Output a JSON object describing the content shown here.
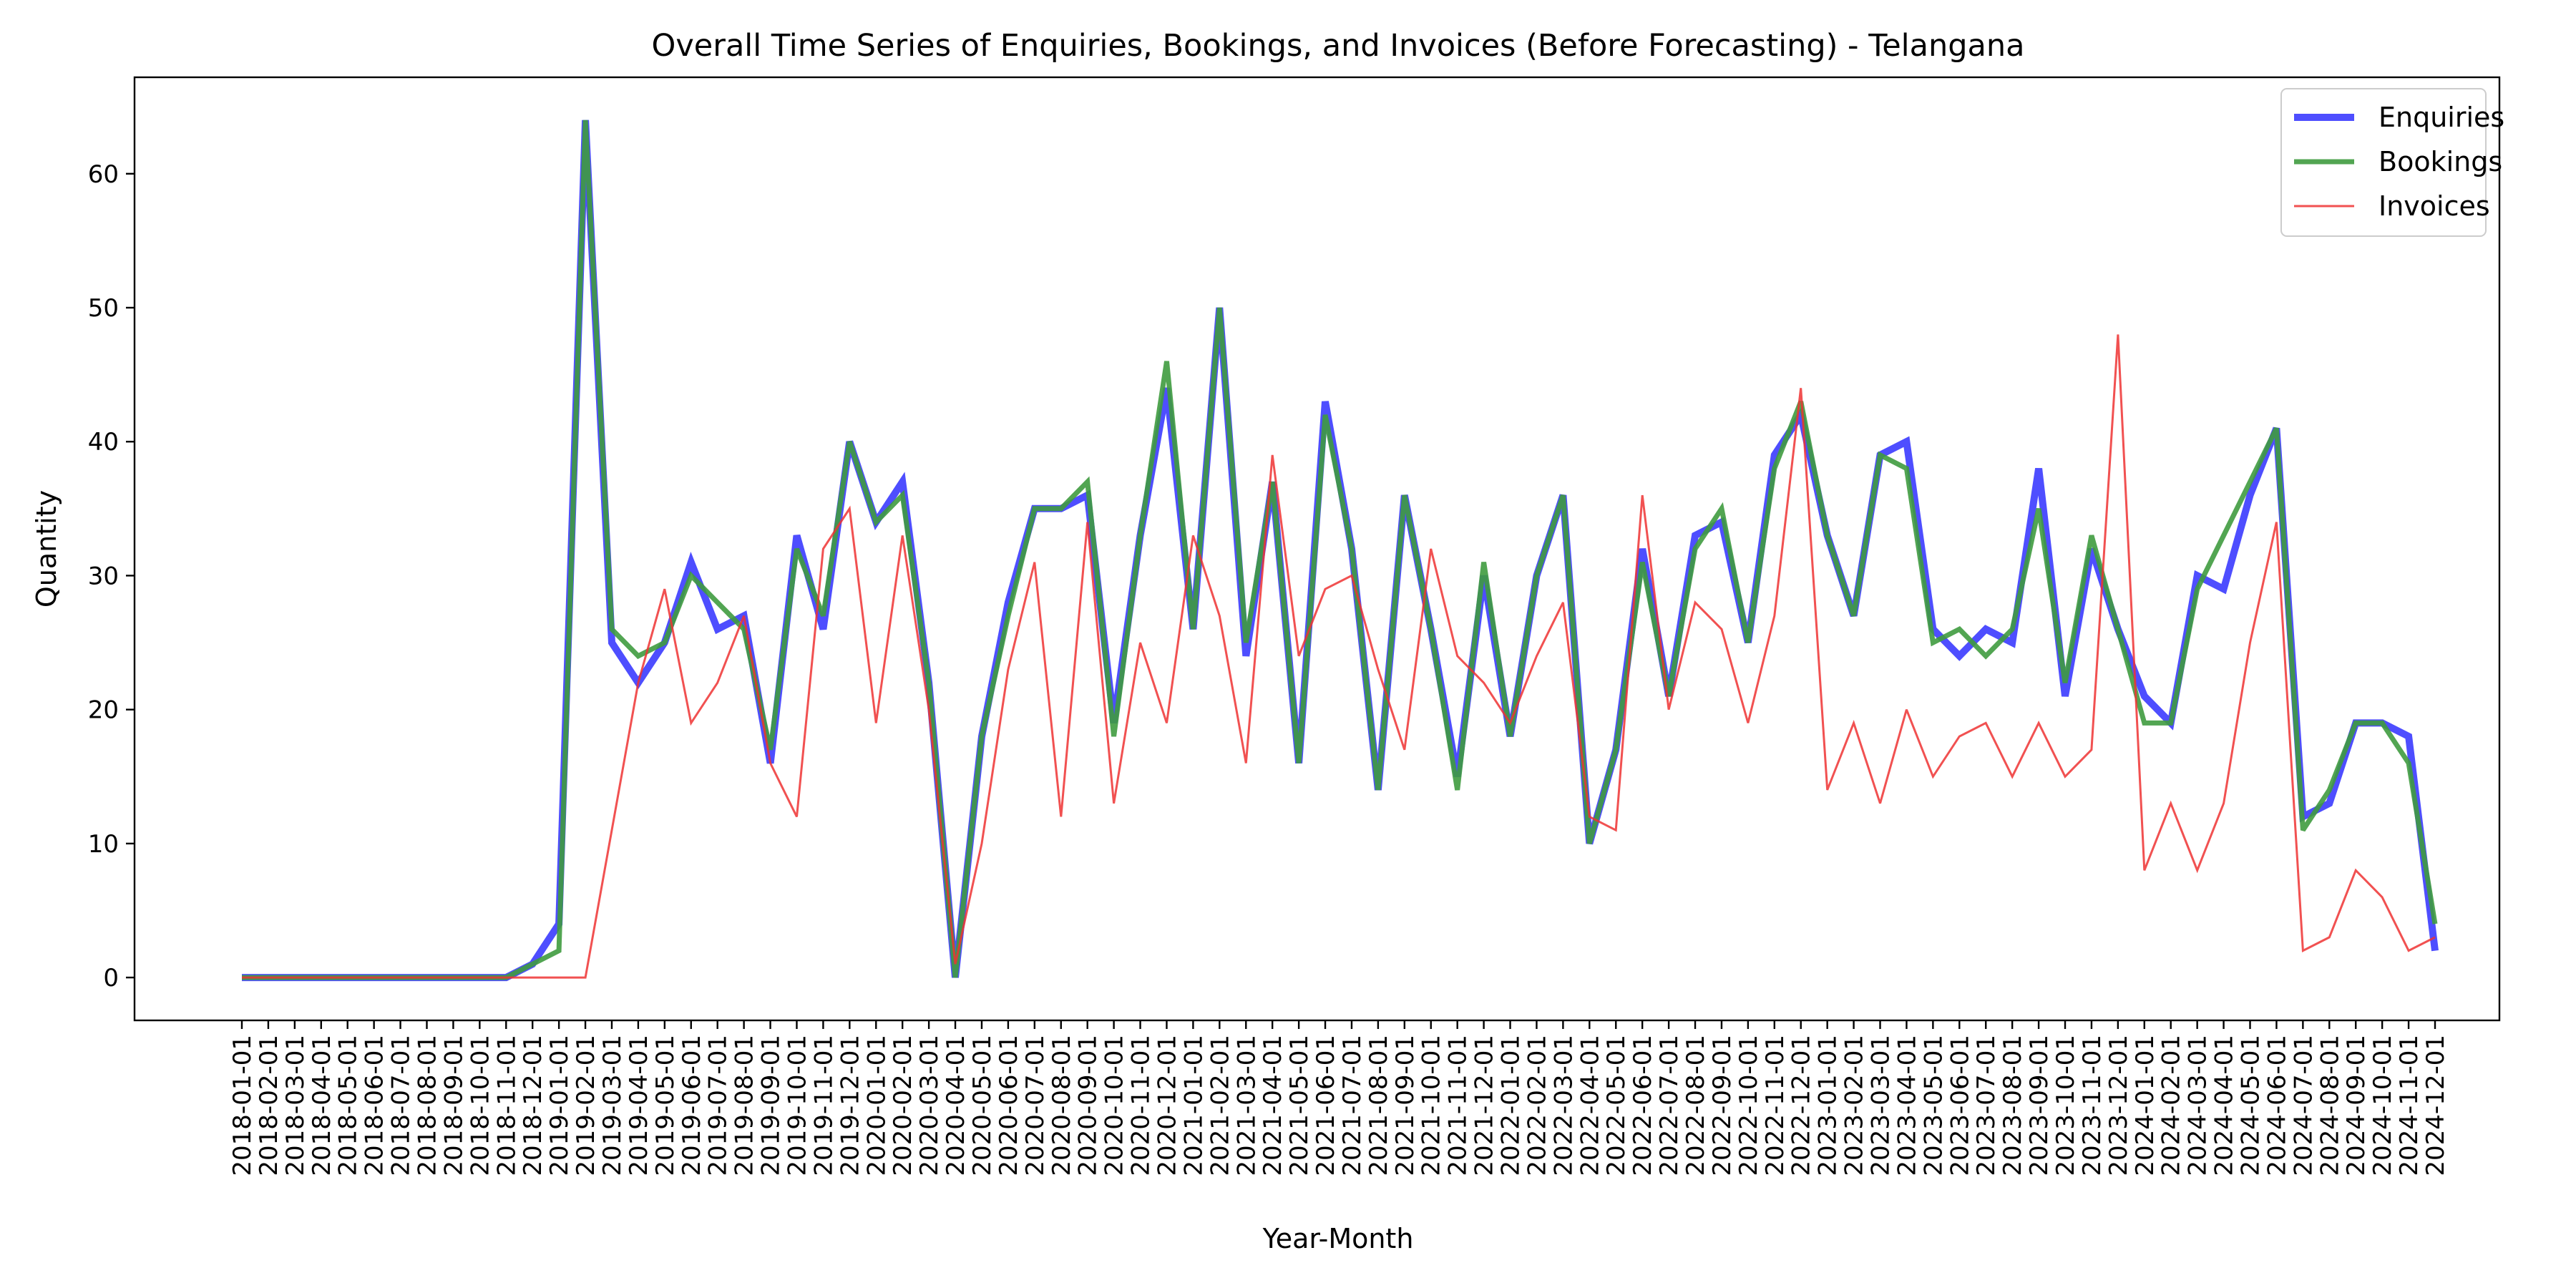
{
  "chart_data": {
    "type": "line",
    "title": "Overall Time Series of Enquiries, Bookings, and Invoices (Before Forecasting) - Telangana",
    "xlabel": "Year-Month",
    "ylabel": "Quantity",
    "ylim": [
      -3.2,
      67.2
    ],
    "yticks": [
      0,
      10,
      20,
      30,
      40,
      50,
      60
    ],
    "legend_position": "top-right",
    "grid": false,
    "x": [
      "2018-01-01",
      "2018-02-01",
      "2018-03-01",
      "2018-04-01",
      "2018-05-01",
      "2018-06-01",
      "2018-07-01",
      "2018-08-01",
      "2018-09-01",
      "2018-10-01",
      "2018-11-01",
      "2018-12-01",
      "2019-01-01",
      "2019-02-01",
      "2019-03-01",
      "2019-04-01",
      "2019-05-01",
      "2019-06-01",
      "2019-07-01",
      "2019-08-01",
      "2019-09-01",
      "2019-10-01",
      "2019-11-01",
      "2019-12-01",
      "2020-01-01",
      "2020-02-01",
      "2020-03-01",
      "2020-04-01",
      "2020-05-01",
      "2020-06-01",
      "2020-07-01",
      "2020-08-01",
      "2020-09-01",
      "2020-10-01",
      "2020-11-01",
      "2020-12-01",
      "2021-01-01",
      "2021-02-01",
      "2021-03-01",
      "2021-04-01",
      "2021-05-01",
      "2021-06-01",
      "2021-07-01",
      "2021-08-01",
      "2021-09-01",
      "2021-10-01",
      "2021-11-01",
      "2021-12-01",
      "2022-01-01",
      "2022-02-01",
      "2022-03-01",
      "2022-04-01",
      "2022-05-01",
      "2022-06-01",
      "2022-07-01",
      "2022-08-01",
      "2022-09-01",
      "2022-10-01",
      "2022-11-01",
      "2022-12-01",
      "2023-01-01",
      "2023-02-01",
      "2023-03-01",
      "2023-04-01",
      "2023-05-01",
      "2023-06-01",
      "2023-07-01",
      "2023-08-01",
      "2023-09-01",
      "2023-10-01",
      "2023-11-01",
      "2023-12-01",
      "2024-01-01",
      "2024-02-01",
      "2024-03-01",
      "2024-04-01",
      "2024-05-01",
      "2024-06-01",
      "2024-07-01",
      "2024-08-01",
      "2024-09-01",
      "2024-10-01",
      "2024-11-01",
      "2024-12-01"
    ],
    "series": [
      {
        "name": "Enquiries",
        "color": "#4444ff",
        "values": [
          0,
          0,
          0,
          0,
          0,
          0,
          0,
          0,
          0,
          0,
          0,
          1,
          4,
          64,
          25,
          22,
          25,
          31,
          26,
          27,
          16,
          33,
          26,
          40,
          34,
          37,
          22,
          0,
          18,
          28,
          35,
          35,
          36,
          19,
          33,
          44,
          26,
          50,
          24,
          37,
          16,
          43,
          32,
          14,
          36,
          26,
          15,
          30,
          18,
          30,
          36,
          10,
          17,
          32,
          21,
          33,
          34,
          25,
          39,
          42,
          33,
          27,
          39,
          40,
          26,
          24,
          26,
          25,
          38,
          21,
          32,
          26,
          21,
          19,
          30,
          29,
          36,
          41,
          12,
          13,
          19,
          19,
          18,
          2
        ]
      },
      {
        "name": "Bookings",
        "color": "#3f9b3f",
        "values": [
          0,
          0,
          0,
          0,
          0,
          0,
          0,
          0,
          0,
          0,
          0,
          1,
          2,
          64,
          26,
          24,
          25,
          30,
          28,
          26,
          17,
          32,
          27,
          40,
          34,
          36,
          22,
          0,
          18,
          27,
          35,
          35,
          37,
          18,
          33,
          46,
          26,
          50,
          25,
          37,
          16,
          42,
          32,
          14,
          36,
          26,
          14,
          31,
          18,
          30,
          36,
          10,
          17,
          31,
          21,
          32,
          35,
          25,
          38,
          43,
          33,
          27,
          39,
          38,
          25,
          26,
          24,
          26,
          35,
          22,
          33,
          26,
          19,
          19,
          29,
          33,
          37,
          41,
          11,
          14,
          19,
          19,
          16,
          4
        ]
      },
      {
        "name": "Invoices",
        "color": "#ee3333",
        "values": [
          0,
          0,
          0,
          0,
          0,
          0,
          0,
          0,
          0,
          0,
          0,
          0,
          0,
          0,
          11,
          22,
          29,
          19,
          22,
          27,
          16,
          12,
          32,
          35,
          19,
          33,
          20,
          1,
          10,
          23,
          31,
          12,
          34,
          13,
          25,
          19,
          33,
          27,
          16,
          39,
          24,
          29,
          30,
          23,
          17,
          32,
          24,
          22,
          19,
          24,
          28,
          12,
          11,
          36,
          20,
          28,
          26,
          19,
          27,
          44,
          14,
          19,
          13,
          20,
          15,
          18,
          19,
          15,
          19,
          15,
          17,
          48,
          8,
          13,
          8,
          13,
          25,
          34,
          2,
          3,
          8,
          6,
          2,
          3
        ]
      }
    ]
  }
}
